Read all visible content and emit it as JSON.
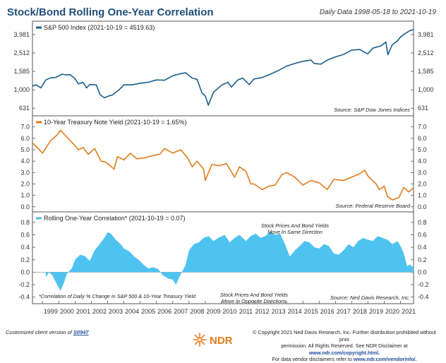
{
  "title": "Stock/Bond Rolling One-Year Correlation",
  "subtitle": "Daily Data 1998-05-18 to 2021-10-19",
  "chart_data": [
    {
      "type": "line",
      "title": "S&P 500 Index (2021-10-19 = 4519.63)",
      "source": "Source:   S&P Dow Jones Indices",
      "scale": "log",
      "color": "#1a5e8a",
      "yticks": [
        631,
        1000,
        1585,
        2512,
        3981
      ],
      "ytick_labels": [
        "631",
        "1,000",
        "1,585",
        "2,512",
        "3,981"
      ],
      "ylim": [
        560,
        5000
      ],
      "x": [
        1998.38,
        1998.6,
        1998.9,
        1999.2,
        1999.5,
        1999.8,
        2000.0,
        2000.2,
        2000.45,
        2000.7,
        2001.0,
        2001.2,
        2001.5,
        2001.7,
        2001.9,
        2002.3,
        2002.55,
        2002.8,
        2003.1,
        2003.3,
        2003.7,
        2004.0,
        2004.5,
        2005.0,
        2005.5,
        2006.0,
        2006.5,
        2007.0,
        2007.5,
        2007.8,
        2008.2,
        2008.5,
        2008.8,
        2009.0,
        2009.19,
        2009.5,
        2010.0,
        2010.4,
        2010.6,
        2011.0,
        2011.3,
        2011.7,
        2012.0,
        2012.5,
        2013.0,
        2013.5,
        2014.0,
        2014.5,
        2015.0,
        2015.5,
        2015.7,
        2016.1,
        2016.5,
        2017.0,
        2017.5,
        2018.0,
        2018.5,
        2018.98,
        2019.3,
        2019.8,
        2020.1,
        2020.22,
        2020.5,
        2020.8,
        2021.0,
        2021.3,
        2021.6,
        2021.8
      ],
      "y": [
        1100,
        1130,
        1050,
        1280,
        1350,
        1360,
        1420,
        1480,
        1450,
        1460,
        1320,
        1160,
        1200,
        1050,
        1140,
        1130,
        880,
        820,
        860,
        880,
        1000,
        1130,
        1130,
        1180,
        1210,
        1280,
        1270,
        1420,
        1500,
        1530,
        1340,
        1300,
        920,
        860,
        680,
        940,
        1120,
        1210,
        1070,
        1280,
        1340,
        1140,
        1310,
        1360,
        1480,
        1620,
        1810,
        1930,
        2040,
        2100,
        1930,
        1900,
        2100,
        2280,
        2420,
        2700,
        2740,
        2450,
        2830,
        3000,
        3300,
        2400,
        3100,
        3380,
        3750,
        4100,
        4400,
        4520
      ]
    },
    {
      "type": "line",
      "title": "10-Year Treasury Note Yield (2021-10-19 = 1.65%)",
      "source": "Source:   Federal Reserve Board",
      "color": "#e07b1a",
      "yticks": [
        0,
        1,
        2,
        3,
        4,
        5,
        6,
        7
      ],
      "ytick_labels": [
        "0.0",
        "1.0",
        "2.0",
        "3.0",
        "4.0",
        "5.0",
        "6.0",
        "7.0"
      ],
      "ylim": [
        -0.2,
        7.6
      ],
      "x": [
        1998.38,
        1998.8,
        1999.0,
        1999.5,
        1999.9,
        2000.1,
        2000.5,
        2000.9,
        2001.2,
        2001.5,
        2001.8,
        2002.2,
        2002.6,
        2002.9,
        2003.4,
        2003.6,
        2004.0,
        2004.4,
        2004.8,
        2005.3,
        2005.8,
        2006.2,
        2006.5,
        2007.0,
        2007.5,
        2007.9,
        2008.2,
        2008.5,
        2008.9,
        2009.0,
        2009.4,
        2009.9,
        2010.3,
        2010.8,
        2011.1,
        2011.5,
        2011.8,
        2012.0,
        2012.5,
        2012.9,
        2013.3,
        2013.7,
        2014.0,
        2014.5,
        2015.0,
        2015.5,
        2016.0,
        2016.5,
        2016.9,
        2017.5,
        2018.0,
        2018.5,
        2018.8,
        2019.0,
        2019.5,
        2019.7,
        2020.0,
        2020.2,
        2020.5,
        2020.9,
        2021.2,
        2021.5,
        2021.8
      ],
      "y": [
        5.6,
        5.0,
        4.7,
        5.8,
        6.3,
        6.7,
        6.1,
        5.5,
        5.0,
        5.2,
        4.6,
        5.1,
        4.0,
        3.9,
        3.3,
        4.4,
        4.1,
        4.7,
        4.2,
        4.3,
        4.5,
        4.6,
        5.1,
        4.7,
        5.0,
        4.3,
        3.5,
        4.0,
        3.3,
        2.3,
        3.7,
        3.6,
        3.8,
        2.6,
        3.5,
        3.1,
        2.0,
        2.0,
        1.5,
        1.8,
        1.9,
        2.8,
        3.0,
        2.6,
        1.9,
        2.3,
        2.1,
        1.5,
        2.4,
        2.3,
        2.6,
        2.9,
        3.2,
        2.7,
        2.0,
        1.5,
        1.8,
        0.9,
        0.6,
        0.8,
        1.7,
        1.3,
        1.65
      ]
    },
    {
      "type": "area",
      "title": "Rolling One-Year Correlation* (2021-10-19 = 0.07)",
      "source": "Source:   Ned Davis Research, Inc.",
      "color": "#4fc3f0",
      "yticks": [
        -0.4,
        -0.2,
        0.0,
        0.2,
        0.4,
        0.6,
        0.8
      ],
      "ytick_labels": [
        "-0.4",
        "-0.2",
        "0.0",
        "0.2",
        "0.4",
        "0.6",
        "0.8"
      ],
      "ylim": [
        -0.46,
        0.9
      ],
      "x": [
        1999.2,
        1999.4,
        1999.6,
        1999.8,
        2000.0,
        2000.1,
        2000.3,
        2000.5,
        2000.8,
        2001.0,
        2001.3,
        2001.6,
        2001.9,
        2002.2,
        2002.5,
        2002.8,
        2003.0,
        2003.2,
        2003.5,
        2003.8,
        2004.0,
        2004.3,
        2004.6,
        2004.9,
        2005.2,
        2005.5,
        2005.8,
        2006.1,
        2006.4,
        2006.7,
        2007.0,
        2007.2,
        2007.4,
        2007.6,
        2007.8,
        2008.0,
        2008.3,
        2008.6,
        2008.9,
        2009.2,
        2009.5,
        2009.8,
        2010.2,
        2010.5,
        2010.8,
        2011.1,
        2011.5,
        2011.8,
        2012.1,
        2012.4,
        2012.7,
        2013.0,
        2013.3,
        2013.6,
        2013.9,
        2014.2,
        2014.5,
        2014.8,
        2015.1,
        2015.4,
        2015.7,
        2016.0,
        2016.3,
        2016.6,
        2016.9,
        2017.2,
        2017.5,
        2017.8,
        2018.1,
        2018.4,
        2018.7,
        2019.0,
        2019.3,
        2019.6,
        2019.9,
        2020.2,
        2020.5,
        2020.8,
        2021.0,
        2021.2,
        2021.4,
        2021.6,
        2021.8
      ],
      "y": [
        -0.08,
        0.0,
        -0.05,
        -0.15,
        -0.25,
        -0.3,
        -0.18,
        -0.02,
        0.06,
        0.2,
        0.28,
        0.26,
        0.18,
        0.35,
        0.45,
        0.55,
        0.64,
        0.62,
        0.52,
        0.45,
        0.38,
        0.34,
        0.26,
        0.2,
        0.12,
        0.06,
        0.08,
        0.05,
        -0.05,
        -0.1,
        -0.12,
        -0.2,
        -0.08,
        0.02,
        0.12,
        0.35,
        0.45,
        0.48,
        0.55,
        0.58,
        0.5,
        0.55,
        0.6,
        0.48,
        0.55,
        0.6,
        0.5,
        0.58,
        0.62,
        0.55,
        0.58,
        0.65,
        0.6,
        0.62,
        0.45,
        0.25,
        0.35,
        0.42,
        0.5,
        0.48,
        0.4,
        0.38,
        0.45,
        0.42,
        0.3,
        0.28,
        0.35,
        0.45,
        0.4,
        0.5,
        0.55,
        0.52,
        0.5,
        0.58,
        0.55,
        0.52,
        0.45,
        0.5,
        0.42,
        0.3,
        0.1,
        0.12,
        0.07
      ],
      "annotations": [
        {
          "lines": [
            "Stock Prices And Bond Yields",
            "Move In Same Direction"
          ]
        },
        {
          "lines": [
            "Stock Prices And Bond Yields",
            "Move In Opposite Directions"
          ]
        },
        {
          "lines": [
            "*Correlation of Daily % Change in S&P 500 & 10-Year Treasury Yield"
          ]
        }
      ]
    }
  ],
  "x_axis": {
    "ticks": [
      "1999",
      "2000",
      "2001",
      "2002",
      "2003",
      "2004",
      "2005",
      "2006",
      "2007",
      "2008",
      "2009",
      "2010",
      "2011",
      "2012",
      "2013",
      "2014",
      "2015",
      "2016",
      "2017",
      "2018",
      "2019",
      "2020",
      "2021"
    ],
    "xlim": [
      1998.38,
      2021.8
    ]
  },
  "footer": {
    "left_text": "Customized client version of ",
    "left_code": "S0947",
    "logo_text": "NDR",
    "copyright_lines": [
      "© Copyright 2021 Ned Davis Research, Inc. Further distribution prohibited without prior",
      "permission. All Rights Reserved. See NDR Disclaimer at",
      "www.ndr.com/copyright.html.",
      "For data vendor disclaimers refer to",
      "www.ndr.com/vendorinfo/."
    ]
  }
}
